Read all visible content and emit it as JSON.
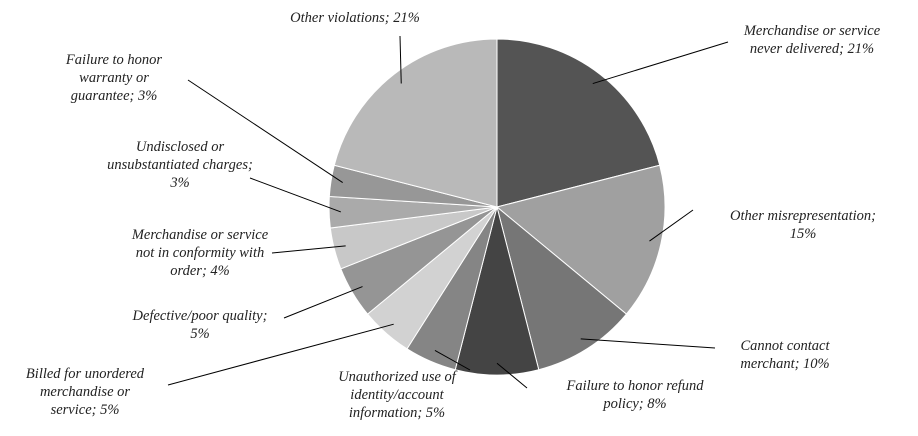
{
  "chart_data": {
    "type": "pie",
    "labels": [
      "Merchandise or service\nnever delivered; 21%",
      "Other misrepresentation;\n15%",
      "Cannot contact\nmerchant; 10%",
      "Failure to honor refund\npolicy; 8%",
      "Unauthorized use of\nidentity/account\ninformation; 5%",
      "Billed for unordered\nmerchandise or\nservice; 5%",
      "Defective/poor quality;\n5%",
      "Merchandise or service\nnot in conformity with\norder; 4%",
      "Undisclosed or\nunsubstantiated charges;\n3%",
      "Failure to honor\nwarranty or\nguarantee; 3%",
      "Other violations; 21%"
    ],
    "values": [
      21,
      15,
      10,
      8,
      5,
      5,
      5,
      4,
      3,
      3,
      21
    ],
    "colors": [
      "#545454",
      "#a0a0a0",
      "#767676",
      "#444444",
      "#858585",
      "#d2d2d2",
      "#959595",
      "#c8c8c8",
      "#aaaaaa",
      "#979797",
      "#b9b9b9"
    ]
  }
}
